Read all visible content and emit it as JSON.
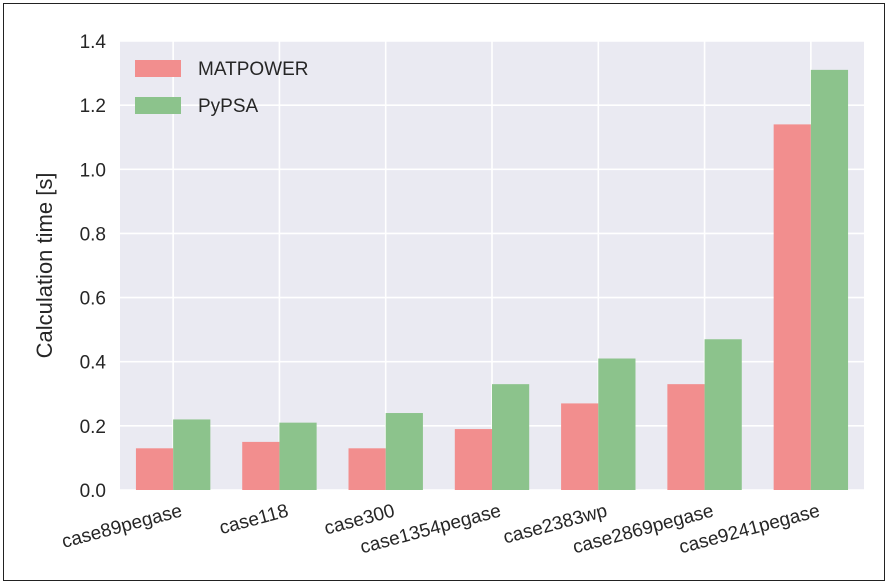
{
  "chart_data": {
    "type": "bar",
    "categories": [
      "case89pegase",
      "case118",
      "case300",
      "case1354pegase",
      "case2383wp",
      "case2869pegase",
      "case9241pegase"
    ],
    "series": [
      {
        "name": "MATPOWER",
        "color": "#f28e8e",
        "values": [
          0.13,
          0.15,
          0.13,
          0.19,
          0.27,
          0.33,
          1.14
        ]
      },
      {
        "name": "PyPSA",
        "color": "#8cc38c",
        "values": [
          0.22,
          0.21,
          0.24,
          0.33,
          0.41,
          0.47,
          1.31
        ]
      }
    ],
    "title": "",
    "xlabel": "",
    "ylabel": "Calculation time [s]",
    "ylim": [
      0,
      1.4
    ],
    "yticks": [
      "0.0",
      "0.2",
      "0.4",
      "0.6",
      "0.8",
      "1.0",
      "1.2",
      "1.4"
    ],
    "grid": true,
    "legend_position": "top-left",
    "background_color": "#eaeaf2"
  }
}
